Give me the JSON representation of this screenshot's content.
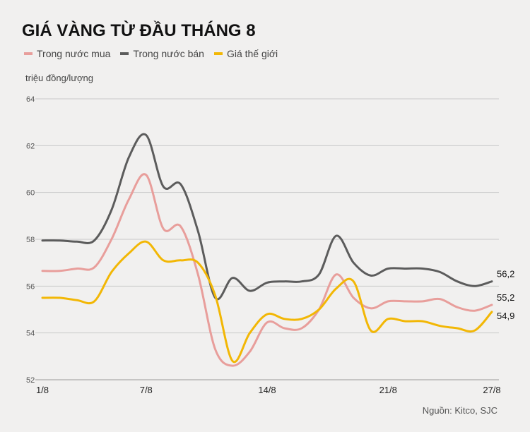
{
  "title": "GIÁ VÀNG TỪ ĐẦU THÁNG 8",
  "legend": [
    {
      "label": "Trong nước mua",
      "color": "#e89e9b"
    },
    {
      "label": "Trong nước bán",
      "color": "#5c5c5c"
    },
    {
      "label": "Giá thế giới",
      "color": "#f2b705"
    }
  ],
  "unit_label": "triệu đồng/lượng",
  "source": "Nguồn: Kitco, SJC",
  "chart_data": {
    "type": "line",
    "xlabel": "",
    "ylabel": "triệu đồng/lượng",
    "ylim": [
      52,
      64
    ],
    "yticks": [
      52,
      54,
      56,
      58,
      60,
      62,
      64
    ],
    "xticks": [
      {
        "day": 1,
        "label": "1/8"
      },
      {
        "day": 7,
        "label": "7/8"
      },
      {
        "day": 14,
        "label": "14/8"
      },
      {
        "day": 21,
        "label": "21/8"
      },
      {
        "day": 27,
        "label": "27/8"
      }
    ],
    "xlim": [
      1,
      27
    ],
    "grid": true,
    "legend_position": "top-left",
    "series": [
      {
        "name": "Trong nước mua",
        "color": "#e89e9b",
        "end_label": "55,2",
        "x": [
          1,
          2,
          3,
          4,
          5,
          6,
          7,
          8,
          9,
          10,
          11,
          12,
          13,
          14,
          15,
          16,
          17,
          18,
          19,
          20,
          21,
          22,
          23,
          24,
          25,
          26,
          27
        ],
        "y": [
          56.65,
          56.65,
          56.75,
          56.8,
          58.0,
          59.7,
          60.75,
          58.45,
          58.55,
          56.5,
          53.3,
          52.6,
          53.2,
          54.45,
          54.2,
          54.2,
          55.0,
          56.5,
          55.5,
          55.05,
          55.35,
          55.35,
          55.35,
          55.45,
          55.1,
          54.95,
          55.2
        ]
      },
      {
        "name": "Trong nước bán",
        "color": "#5c5c5c",
        "end_label": "56,2",
        "x": [
          1,
          2,
          3,
          4,
          5,
          6,
          7,
          8,
          9,
          10,
          11,
          12,
          13,
          14,
          15,
          16,
          17,
          18,
          19,
          20,
          21,
          22,
          23,
          24,
          25,
          26,
          27
        ],
        "y": [
          57.95,
          57.95,
          57.9,
          57.95,
          59.25,
          61.5,
          62.45,
          60.25,
          60.35,
          58.35,
          55.5,
          56.35,
          55.8,
          56.15,
          56.2,
          56.2,
          56.5,
          58.15,
          57.0,
          56.45,
          56.75,
          56.75,
          56.75,
          56.6,
          56.2,
          56.0,
          56.2
        ]
      },
      {
        "name": "Giá thế giới",
        "color": "#f2b705",
        "end_label": "54,9",
        "x": [
          1,
          2,
          3,
          4,
          5,
          6,
          7,
          8,
          9,
          10,
          11,
          12,
          13,
          14,
          15,
          16,
          17,
          18,
          19,
          20,
          21,
          22,
          23,
          24,
          25,
          26,
          27
        ],
        "y": [
          55.5,
          55.5,
          55.4,
          55.35,
          56.6,
          57.4,
          57.9,
          57.1,
          57.1,
          57.0,
          55.6,
          52.8,
          54.0,
          54.8,
          54.6,
          54.6,
          55.0,
          55.9,
          56.2,
          54.1,
          54.6,
          54.5,
          54.5,
          54.3,
          54.2,
          54.1,
          54.9
        ]
      }
    ]
  }
}
